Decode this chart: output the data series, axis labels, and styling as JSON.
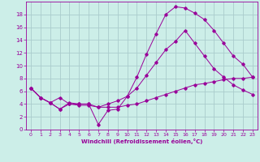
{
  "bg_color": "#cceee8",
  "grid_color": "#aacccc",
  "line_color": "#990099",
  "xlabel": "Windchill (Refroidissement éolien,°C)",
  "xlim": [
    -0.5,
    23.5
  ],
  "ylim": [
    0,
    20
  ],
  "xticks": [
    0,
    1,
    2,
    3,
    4,
    5,
    6,
    7,
    8,
    9,
    10,
    11,
    12,
    13,
    14,
    15,
    16,
    17,
    18,
    19,
    20,
    21,
    22,
    23
  ],
  "yticks": [
    0,
    2,
    4,
    6,
    8,
    10,
    12,
    14,
    16,
    18
  ],
  "series": [
    {
      "x": [
        0,
        1,
        2,
        3,
        4,
        5,
        6,
        7,
        8,
        9,
        10,
        11,
        12,
        13,
        14,
        15,
        16,
        17,
        18,
        19,
        20,
        21,
        22,
        23
      ],
      "y": [
        6.5,
        5.0,
        4.2,
        5.0,
        4.0,
        4.0,
        4.0,
        0.8,
        3.0,
        3.2,
        5.2,
        8.2,
        11.8,
        15.0,
        18.0,
        19.2,
        19.0,
        18.2,
        17.2,
        15.5,
        13.5,
        11.5,
        10.2,
        8.2
      ]
    },
    {
      "x": [
        0,
        1,
        2,
        3,
        4,
        5,
        6,
        7,
        8,
        9,
        10,
        11,
        12,
        13,
        14,
        15,
        16,
        17,
        18,
        19,
        20,
        21,
        22,
        23
      ],
      "y": [
        6.5,
        5.0,
        4.2,
        3.2,
        4.2,
        4.0,
        4.0,
        3.5,
        4.0,
        4.5,
        5.2,
        6.5,
        8.5,
        10.5,
        12.5,
        13.8,
        15.5,
        13.5,
        11.5,
        9.5,
        8.2,
        7.0,
        6.2,
        5.5
      ]
    },
    {
      "x": [
        0,
        1,
        2,
        3,
        4,
        5,
        6,
        7,
        8,
        9,
        10,
        11,
        12,
        13,
        14,
        15,
        16,
        17,
        18,
        19,
        20,
        21,
        22,
        23
      ],
      "y": [
        6.5,
        5.0,
        4.2,
        3.2,
        4.0,
        3.8,
        3.8,
        3.5,
        3.5,
        3.5,
        3.8,
        4.0,
        4.5,
        5.0,
        5.5,
        6.0,
        6.5,
        7.0,
        7.2,
        7.5,
        7.8,
        8.0,
        8.0,
        8.2
      ]
    }
  ]
}
